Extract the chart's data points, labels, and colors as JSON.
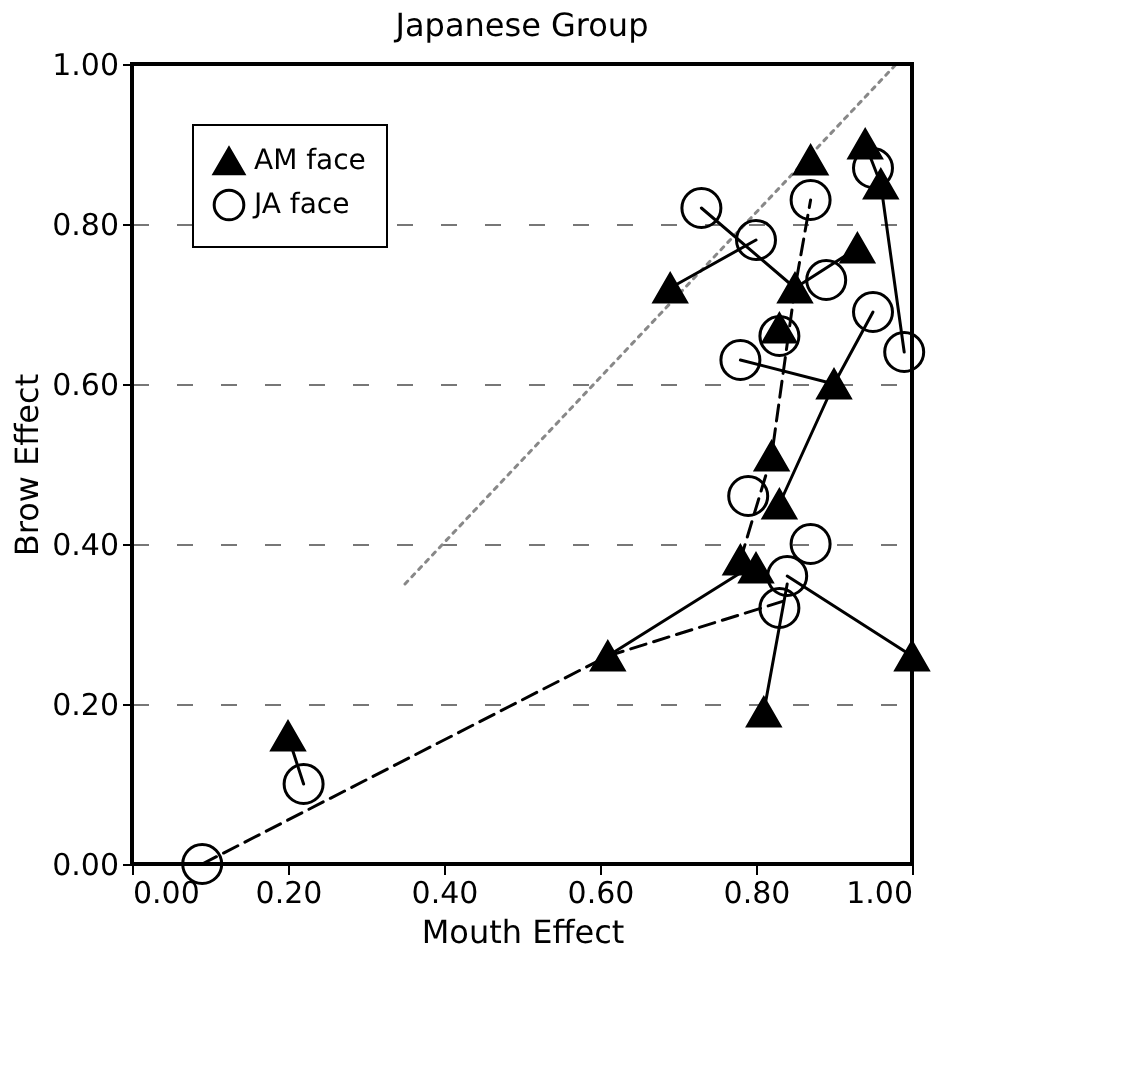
{
  "chart_data": {
    "type": "scatter",
    "title": "Japanese Group",
    "xlabel": "Mouth Effect",
    "ylabel": "Brow Effect",
    "xlim": [
      0,
      1
    ],
    "ylim": [
      0,
      1
    ],
    "xticks": [
      {
        "value": 0,
        "label": "0.00"
      },
      {
        "value": 0.2,
        "label": "0.20"
      },
      {
        "value": 0.4,
        "label": "0.40"
      },
      {
        "value": 0.6,
        "label": "0.60"
      },
      {
        "value": 0.8,
        "label": "0.80"
      },
      {
        "value": 1,
        "label": "1.00"
      }
    ],
    "yticks": [
      {
        "value": 0,
        "label": "0.00"
      },
      {
        "value": 0.2,
        "label": "0.20"
      },
      {
        "value": 0.4,
        "label": "0.40"
      },
      {
        "value": 0.6,
        "label": "0.60"
      },
      {
        "value": 0.8,
        "label": "0.80"
      },
      {
        "value": 1,
        "label": "1.00"
      }
    ],
    "grid": "y",
    "legend": "top left",
    "series": [
      {
        "type": "line",
        "color": "#888888",
        "line_style": "dotted",
        "marker": "none",
        "x": [
          0.35,
          0.98
        ],
        "values": [
          0.35,
          1.0
        ]
      },
      {
        "type": "line",
        "color": "#000000",
        "line_style": "dashed",
        "marker": "none",
        "x": [
          0.09,
          0.61
        ],
        "values": [
          0.0,
          0.26
        ]
      },
      {
        "type": "line",
        "color": "#000000",
        "line_style": "solid",
        "marker": "none",
        "x": [
          0.61,
          0.79
        ],
        "values": [
          0.26,
          0.37
        ]
      },
      {
        "type": "line",
        "color": "#000000",
        "line_style": "dashed",
        "marker": "none",
        "x": [
          0.61,
          0.84
        ],
        "values": [
          0.26,
          0.33
        ]
      },
      {
        "type": "line",
        "color": "#000000",
        "line_style": "solid",
        "marker": "none",
        "x": [
          0.2,
          0.22
        ],
        "values": [
          0.16,
          0.1
        ]
      },
      {
        "type": "line",
        "color": "#000000",
        "line_style": "solid",
        "marker": "none",
        "x": [
          0.84,
          1.0
        ],
        "values": [
          0.36,
          0.26
        ]
      },
      {
        "type": "line",
        "color": "#000000",
        "line_style": "solid",
        "marker": "none",
        "x": [
          0.81,
          0.84
        ],
        "values": [
          0.19,
          0.35
        ]
      },
      {
        "type": "line",
        "color": "#000000",
        "line_style": "dashed",
        "marker": "none",
        "x": [
          0.78,
          0.82,
          0.85,
          0.87
        ],
        "values": [
          0.38,
          0.51,
          0.72,
          0.83
        ]
      },
      {
        "type": "line",
        "color": "#000000",
        "line_style": "solid",
        "marker": "none",
        "x": [
          0.83,
          0.9,
          0.95
        ],
        "values": [
          0.45,
          0.6,
          0.69
        ]
      },
      {
        "type": "line",
        "color": "#000000",
        "line_style": "solid",
        "marker": "none",
        "x": [
          0.78,
          0.9
        ],
        "values": [
          0.63,
          0.6
        ]
      },
      {
        "type": "line",
        "color": "#000000",
        "line_style": "solid",
        "marker": "none",
        "x": [
          0.73,
          0.85
        ],
        "values": [
          0.82,
          0.72
        ]
      },
      {
        "type": "line",
        "color": "#000000",
        "line_style": "solid",
        "marker": "none",
        "x": [
          0.69,
          0.8
        ],
        "values": [
          0.72,
          0.78
        ]
      },
      {
        "type": "line",
        "color": "#000000",
        "line_style": "solid",
        "marker": "none",
        "x": [
          0.85,
          0.93
        ],
        "values": [
          0.72,
          0.77
        ]
      },
      {
        "type": "line",
        "color": "#000000",
        "line_style": "solid",
        "marker": "none",
        "x": [
          0.99,
          0.96,
          0.94
        ],
        "values": [
          0.64,
          0.85,
          0.9
        ]
      },
      {
        "name": "AM face",
        "color": "#000000",
        "marker": "triangle",
        "x": [
          0.2,
          0.61,
          0.78,
          0.8,
          0.81,
          0.82,
          0.83,
          0.83,
          0.85,
          0.87,
          0.9,
          0.94,
          0.96,
          0.93,
          0.69,
          1.0
        ],
        "values": [
          0.16,
          0.26,
          0.38,
          0.37,
          0.19,
          0.51,
          0.45,
          0.67,
          0.72,
          0.88,
          0.6,
          0.9,
          0.85,
          0.77,
          0.72,
          0.26
        ]
      },
      {
        "name": "JA face",
        "color": "#000000",
        "marker": "circle",
        "x": [
          0.09,
          0.22,
          0.73,
          0.8,
          0.79,
          0.78,
          0.83,
          0.87,
          0.89,
          0.87,
          0.84,
          0.83,
          0.95,
          0.95,
          0.99
        ],
        "values": [
          0.0,
          0.1,
          0.82,
          0.78,
          0.46,
          0.63,
          0.66,
          0.83,
          0.73,
          0.4,
          0.36,
          0.32,
          0.69,
          0.87,
          0.64
        ]
      }
    ]
  }
}
